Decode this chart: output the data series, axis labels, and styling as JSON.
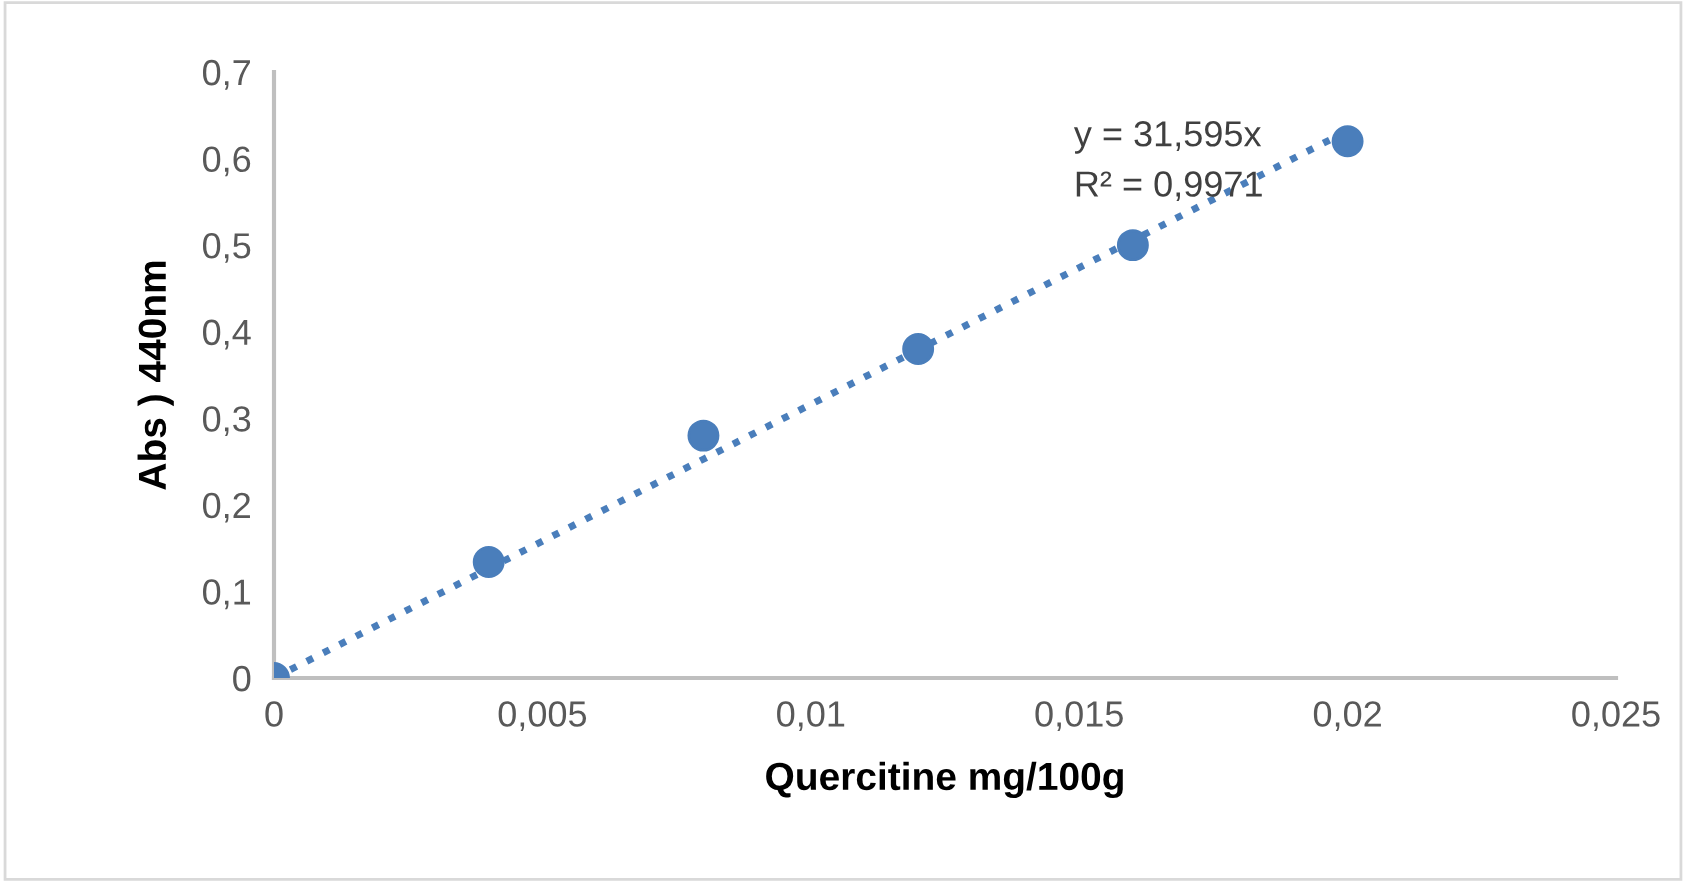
{
  "chart_data": {
    "type": "scatter",
    "xlabel": "Quercitine mg/100g",
    "ylabel": "Abs ) 440nm",
    "series": [
      {
        "color": "#4a7ebb",
        "x": [
          0,
          0.004,
          0.008,
          0.012,
          0.016,
          0.02
        ],
        "values": [
          0,
          0.134,
          0.28,
          0.38,
          0.5,
          0.62
        ],
        "marker": "circle"
      },
      {
        "type": "line",
        "color": "#4a7ebb",
        "x": [
          0,
          0.02
        ],
        "values": [
          0,
          0.632
        ],
        "line_style": "dotted",
        "marker": "none"
      }
    ],
    "annotations": [
      "y = 31,595x",
      "R² = 0,9971"
    ],
    "xlim": [
      0,
      0.025
    ],
    "ylim": [
      0,
      0.7
    ],
    "xticks": [
      0,
      {
        "value": 0.005,
        "label": "0,005"
      },
      {
        "value": 0.01,
        "label": "0,01"
      },
      {
        "value": 0.015,
        "label": "0,015"
      },
      {
        "value": 0.02,
        "label": "0,02"
      },
      {
        "value": 0.025,
        "label": "0,025"
      }
    ],
    "yticks": [
      0,
      {
        "value": 0.1,
        "label": "0,1"
      },
      {
        "value": 0.2,
        "label": "0,2"
      },
      {
        "value": 0.3,
        "label": "0,3"
      },
      {
        "value": 0.4,
        "label": "0,4"
      },
      {
        "value": 0.5,
        "label": "0,5"
      },
      {
        "value": 0.6,
        "label": "0,6"
      },
      {
        "value": 0.7,
        "label": "0,7"
      }
    ],
    "grid": false
  }
}
